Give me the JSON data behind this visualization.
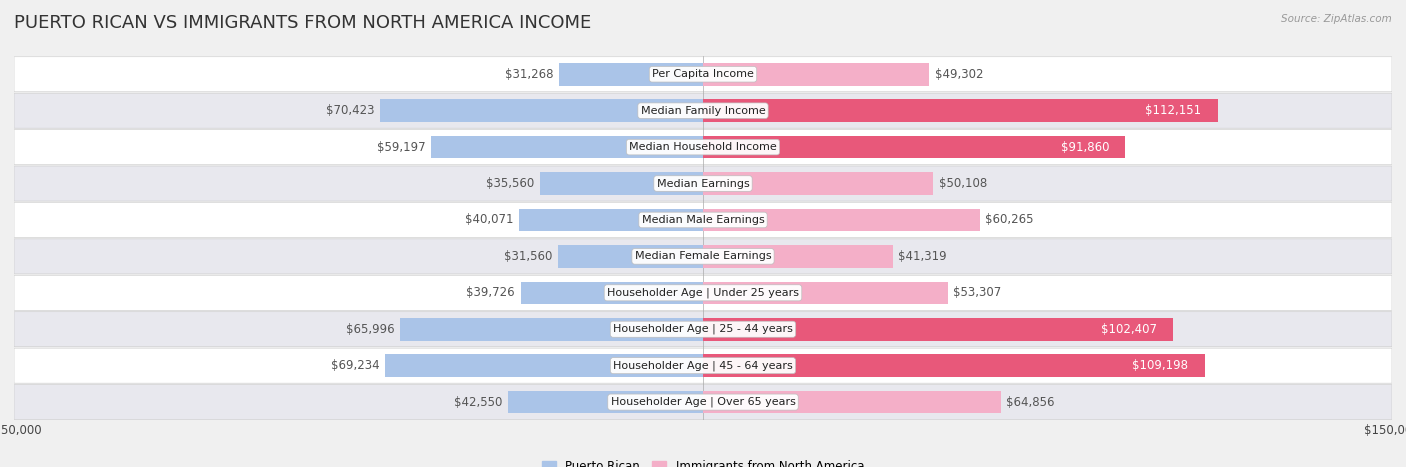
{
  "title": "PUERTO RICAN VS IMMIGRANTS FROM NORTH AMERICA INCOME",
  "source": "Source: ZipAtlas.com",
  "categories": [
    "Per Capita Income",
    "Median Family Income",
    "Median Household Income",
    "Median Earnings",
    "Median Male Earnings",
    "Median Female Earnings",
    "Householder Age | Under 25 years",
    "Householder Age | 25 - 44 years",
    "Householder Age | 45 - 64 years",
    "Householder Age | Over 65 years"
  ],
  "puerto_rican": [
    31268,
    70423,
    59197,
    35560,
    40071,
    31560,
    39726,
    65996,
    69234,
    42550
  ],
  "north_america": [
    49302,
    112151,
    91860,
    50108,
    60265,
    41319,
    53307,
    102407,
    109198,
    64856
  ],
  "puerto_rican_color_light": "#aac4e8",
  "puerto_rican_color_dark": "#6699cc",
  "north_america_color_light": "#f4afc8",
  "north_america_color_dark": "#e8587a",
  "highlight_threshold": 80000,
  "label_color_dark": "#555555",
  "label_color_white": "#ffffff",
  "background_color": "#f0f0f0",
  "row_bg_even": "#ffffff",
  "row_bg_odd": "#e8e8ee",
  "axis_limit": 150000,
  "legend_label_pr": "Puerto Rican",
  "legend_label_na": "Immigrants from North America",
  "title_fontsize": 13,
  "label_fontsize": 8.5,
  "category_fontsize": 8,
  "bar_height": 0.62
}
